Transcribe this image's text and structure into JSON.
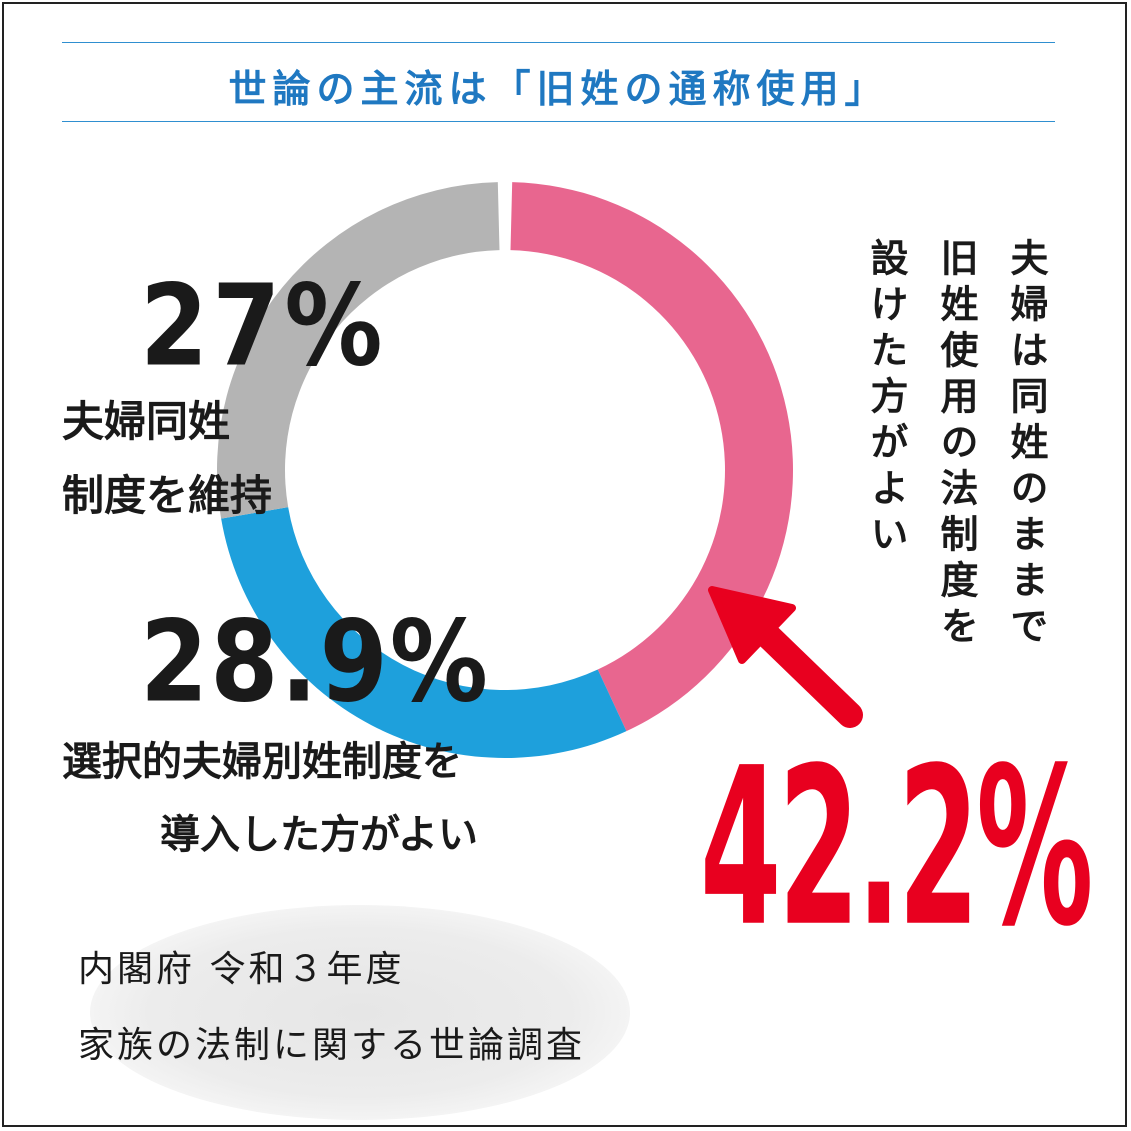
{
  "title": "世論の主流は「旧姓の通称使用」",
  "colors": {
    "pink": "#e8668f",
    "blue": "#1ea0dc",
    "gray": "#b4b4b4",
    "accent_red": "#e8001f",
    "title_blue": "#1f78c1"
  },
  "chart_data": {
    "type": "pie",
    "style": "donut",
    "title": "世論の主流は「旧姓の通称使用」",
    "series": [
      {
        "name": "夫婦は同姓のままで旧姓使用の法制度を設けた方がよい",
        "value": 42.2,
        "label": "42.2%",
        "color": "#e8668f"
      },
      {
        "name": "選択的夫婦別姓制度を導入した方がよい",
        "value": 28.9,
        "label": "28.9%",
        "color": "#1ea0dc"
      },
      {
        "name": "夫婦同姓制度を維持",
        "value": 27,
        "label": "27%",
        "color": "#b4b4b4"
      }
    ]
  },
  "labels": {
    "gray_pct": "27%",
    "gray_line1": "夫婦同姓",
    "gray_line2": "制度を維持",
    "blue_pct": "28.9%",
    "blue_line1": "選択的夫婦別姓制度を",
    "blue_line2": "導入した方がよい",
    "pink_pct": "42.2%",
    "pink_col1": "夫婦は同姓のままで",
    "pink_col2": "旧姓使用の法制度を",
    "pink_col3": "設けた方がよい"
  },
  "source": {
    "line1": "内閣府 令和３年度",
    "line2": "家族の法制に関する世論調査"
  }
}
